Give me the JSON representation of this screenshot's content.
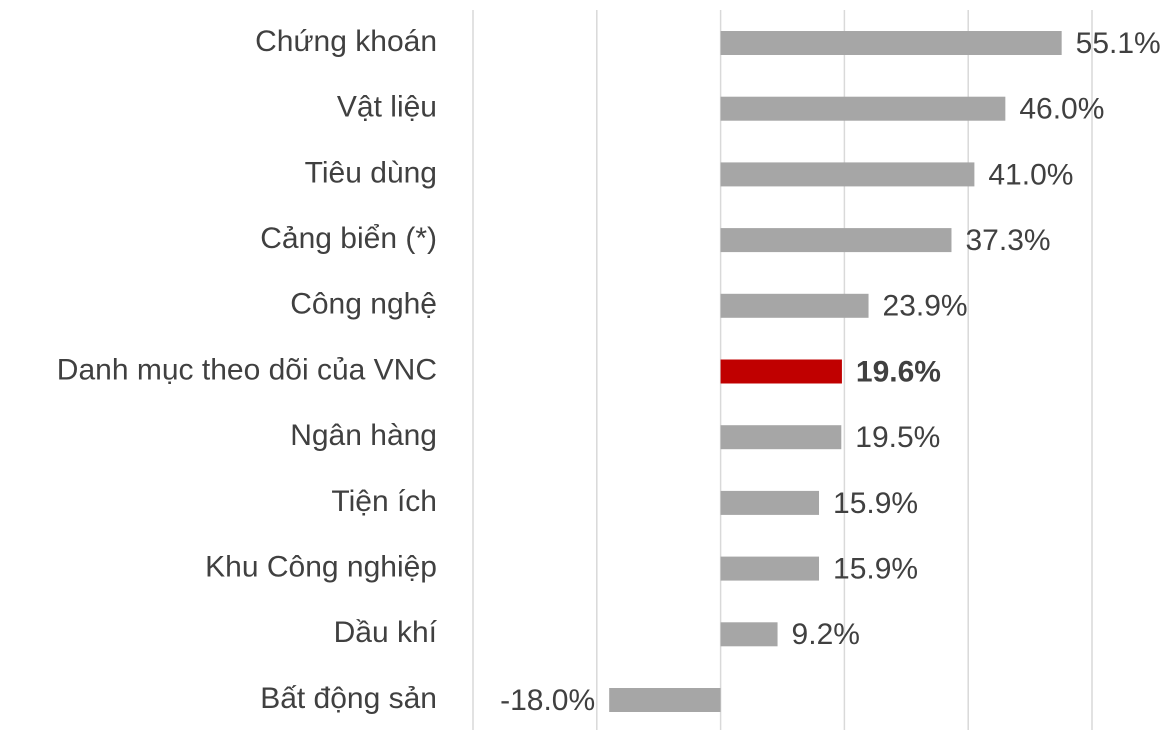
{
  "chart_data": {
    "type": "bar",
    "orientation": "horizontal",
    "categories": [
      "Chứng khoán",
      "Vật liệu",
      "Tiêu dùng",
      "Cảng biển (*)",
      "Công nghệ",
      "Danh mục theo dõi của VNC",
      "Ngân hàng",
      "Tiện ích",
      "Khu Công nghiệp",
      "Dầu khí",
      "Bất động sản"
    ],
    "values": [
      55.1,
      46.0,
      41.0,
      37.3,
      23.9,
      19.6,
      19.5,
      15.9,
      15.9,
      9.2,
      -18.0
    ],
    "value_labels": [
      "55.1%",
      "46.0%",
      "41.0%",
      "37.3%",
      "23.9%",
      "19.6%",
      "19.5%",
      "15.9%",
      "15.9%",
      "9.2%",
      "-18.0%"
    ],
    "color": "#a6a6a6",
    "colors": [
      "#a6a6a6",
      "#a6a6a6",
      "#a6a6a6",
      "#a6a6a6",
      "#a6a6a6",
      "#c00000",
      "#a6a6a6",
      "#a6a6a6",
      "#a6a6a6",
      "#a6a6a6",
      "#a6a6a6"
    ],
    "xlim": [
      -40,
      60
    ],
    "xticks": [
      -40,
      -20,
      0,
      20,
      40,
      60
    ],
    "grid": true
  }
}
